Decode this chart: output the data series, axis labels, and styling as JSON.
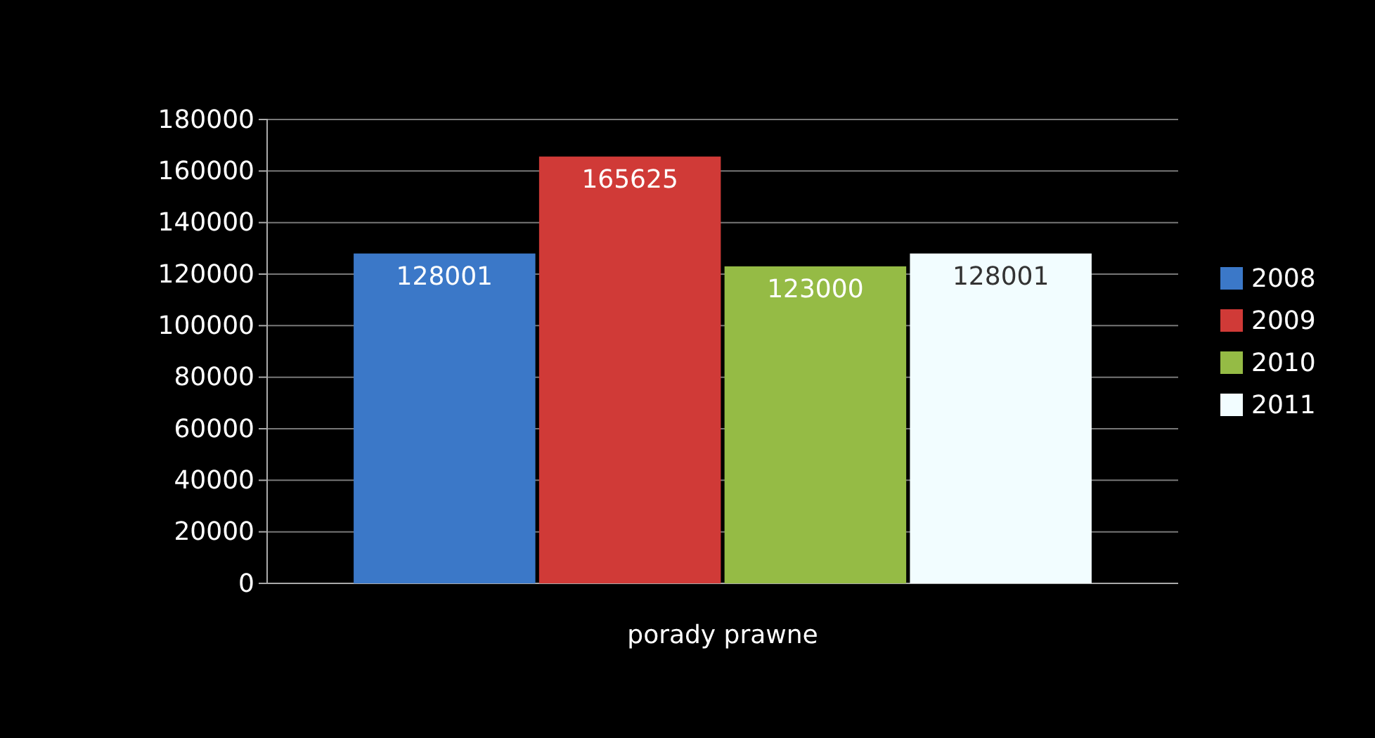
{
  "chart_data": {
    "type": "bar",
    "categories": [
      "porady prawne"
    ],
    "series": [
      {
        "name": "2008",
        "color": "#3b78c8",
        "values": [
          128001
        ]
      },
      {
        "name": "2009",
        "color": "#d03a37",
        "values": [
          165625
        ]
      },
      {
        "name": "2010",
        "color": "#95bb45",
        "values": [
          123000
        ]
      },
      {
        "name": "2011",
        "color": "#f2fdff",
        "values": [
          128001
        ]
      }
    ],
    "ylim": [
      0,
      180000
    ],
    "yticks": [
      0,
      20000,
      40000,
      60000,
      80000,
      100000,
      120000,
      140000,
      160000,
      180000
    ],
    "grid": "y",
    "legend": "right",
    "data_labels": true
  }
}
